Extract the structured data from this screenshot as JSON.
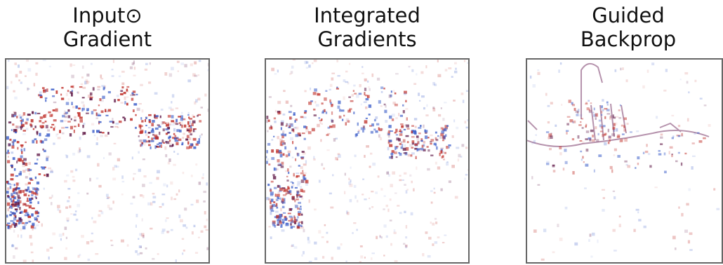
{
  "panels": [
    {
      "title": [
        "Input⊙",
        "Gradient"
      ]
    },
    {
      "title": [
        "Integrated",
        "Gradients"
      ]
    },
    {
      "title": [
        "Guided",
        "Backprop"
      ]
    }
  ]
}
